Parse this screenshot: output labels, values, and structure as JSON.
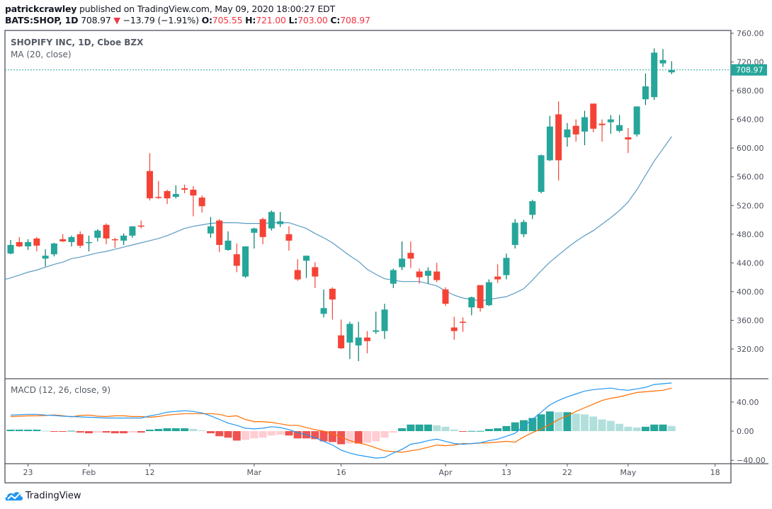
{
  "header": {
    "author": "patrickcrawley",
    "published_text": "published on TradingView.com, May 09, 2020 18:00:27 EDT",
    "symbol": "BATS:SHOP, 1D",
    "last": "708.97",
    "change": "−13.79 (−1.91%)",
    "o_label": "O:",
    "o": "705.55",
    "h_label": "H:",
    "h": "721.00",
    "l_label": "L:",
    "l": "703.00",
    "c_label": "C:",
    "c": "708.97"
  },
  "legend": {
    "title": "SHOPIFY INC, 1D, Cboe BZX",
    "ma": "MA (20, close)",
    "macd": "MACD (12, 26, close, 9)"
  },
  "logo_text": "TradingView",
  "colors": {
    "up": "#26a69a",
    "down": "#f44336",
    "ma": "#5b9bc3",
    "macd": "#2196f3",
    "signal": "#ff6d00",
    "hist_up_strong": "#26a69a",
    "hist_up_weak": "#b2dfdb",
    "hist_down_strong": "#ef5350",
    "hist_down_weak": "#ffcdd2"
  },
  "chart_data": [
    {
      "type": "candlestick",
      "title": "SHOPIFY INC, 1D, Cboe BZX",
      "ylim": [
        280,
        770
      ],
      "y_ticks": [
        "760.00",
        "720.00",
        "680.00",
        "640.00",
        "600.00",
        "560.00",
        "520.00",
        "480.00",
        "440.00",
        "400.00",
        "360.00",
        "320.00"
      ],
      "last_price_label": "708.97",
      "x_tick_labels": [
        {
          "label": "23",
          "date": "Jan 23"
        },
        {
          "label": "Feb",
          "date": "Feb 3"
        },
        {
          "label": "12",
          "date": "Feb 12"
        },
        {
          "label": "Mar",
          "date": "Mar 2"
        },
        {
          "label": "16",
          "date": "Mar 16"
        },
        {
          "label": "Apr",
          "date": "Apr 1"
        },
        {
          "label": "13",
          "date": "Apr 13"
        },
        {
          "label": "22",
          "date": "Apr 22"
        },
        {
          "label": "May",
          "date": "May 1"
        },
        {
          "label": "18",
          "date": "May 18"
        }
      ],
      "dates": [
        "Jan 21",
        "Jan 22",
        "Jan 23",
        "Jan 24",
        "Jan 27",
        "Jan 28",
        "Jan 29",
        "Jan 30",
        "Jan 31",
        "Feb 3",
        "Feb 4",
        "Feb 5",
        "Feb 6",
        "Feb 7",
        "Feb 10",
        "Feb 11",
        "Feb 12",
        "Feb 13",
        "Feb 14",
        "Feb 18",
        "Feb 19",
        "Feb 20",
        "Feb 21",
        "Feb 24",
        "Feb 25",
        "Feb 26",
        "Feb 27",
        "Feb 28",
        "Mar 2",
        "Mar 3",
        "Mar 4",
        "Mar 5",
        "Mar 6",
        "Mar 9",
        "Mar 10",
        "Mar 11",
        "Mar 12",
        "Mar 13",
        "Mar 16",
        "Mar 17",
        "Mar 18",
        "Mar 19",
        "Mar 20",
        "Mar 23",
        "Mar 24",
        "Mar 25",
        "Mar 26",
        "Mar 27",
        "Mar 30",
        "Mar 31",
        "Apr 1",
        "Apr 2",
        "Apr 3",
        "Apr 6",
        "Apr 7",
        "Apr 8",
        "Apr 9",
        "Apr 13",
        "Apr 14",
        "Apr 15",
        "Apr 16",
        "Apr 17",
        "Apr 20",
        "Apr 21",
        "Apr 22",
        "Apr 23",
        "Apr 24",
        "Apr 27",
        "Apr 28",
        "Apr 29",
        "Apr 30",
        "May 1",
        "May 4",
        "May 5",
        "May 6",
        "May 7",
        "May 8"
      ],
      "ohlc": [
        [
          453,
          472,
          452,
          465
        ],
        [
          469,
          476,
          462,
          463
        ],
        [
          463,
          473,
          458,
          469
        ],
        [
          474,
          476,
          456,
          464
        ],
        [
          446,
          459,
          435,
          450
        ],
        [
          452,
          468,
          449,
          467
        ],
        [
          473,
          480,
          469,
          470
        ],
        [
          469,
          478,
          463,
          476
        ],
        [
          480,
          484,
          461,
          464
        ],
        [
          468,
          478,
          456,
          469
        ],
        [
          475,
          487,
          470,
          485
        ],
        [
          493,
          495,
          466,
          474
        ],
        [
          473,
          475,
          461,
          472
        ],
        [
          471,
          481,
          465,
          478
        ],
        [
          478,
          491,
          475,
          491
        ],
        [
          492,
          499,
          488,
          491
        ],
        [
          568,
          593,
          527,
          530
        ],
        [
          532,
          554,
          529,
          531
        ],
        [
          540,
          542,
          522,
          530
        ],
        [
          532,
          548,
          530,
          536
        ],
        [
          544,
          549,
          537,
          542
        ],
        [
          542,
          547,
          505,
          534
        ],
        [
          531,
          534,
          510,
          519
        ],
        [
          481,
          504,
          475,
          491
        ],
        [
          499,
          501,
          455,
          465
        ],
        [
          458,
          484,
          457,
          471
        ],
        [
          452,
          467,
          427,
          436
        ],
        [
          421,
          463,
          419,
          463
        ],
        [
          482,
          489,
          460,
          488
        ],
        [
          501,
          503,
          466,
          476
        ],
        [
          488,
          513,
          485,
          511
        ],
        [
          494,
          511,
          490,
          498
        ],
        [
          480,
          491,
          457,
          471
        ],
        [
          430,
          445,
          415,
          417
        ],
        [
          443,
          450,
          419,
          450
        ],
        [
          434,
          441,
          405,
          421
        ],
        [
          369,
          403,
          364,
          377
        ],
        [
          404,
          406,
          361,
          389
        ],
        [
          339,
          361,
          320,
          321
        ],
        [
          329,
          358,
          306,
          355
        ],
        [
          325,
          358,
          303,
          336
        ],
        [
          336,
          345,
          314,
          331
        ],
        [
          344,
          372,
          341,
          346
        ],
        [
          345,
          383,
          334,
          375
        ],
        [
          411,
          432,
          405,
          430
        ],
        [
          434,
          470,
          430,
          446
        ],
        [
          454,
          470,
          433,
          446
        ],
        [
          428,
          432,
          411,
          420
        ],
        [
          422,
          434,
          411,
          429
        ],
        [
          428,
          440,
          413,
          416
        ],
        [
          403,
          406,
          380,
          383
        ],
        [
          350,
          365,
          333,
          345
        ],
        [
          358,
          364,
          344,
          357
        ],
        [
          378,
          393,
          367,
          392
        ],
        [
          409,
          409,
          372,
          377
        ],
        [
          381,
          417,
          380,
          413
        ],
        [
          421,
          438,
          412,
          417
        ],
        [
          423,
          453,
          417,
          447
        ],
        [
          465,
          501,
          460,
          496
        ],
        [
          480,
          500,
          476,
          497
        ],
        [
          507,
          528,
          501,
          526
        ],
        [
          539,
          591,
          537,
          590
        ],
        [
          583,
          645,
          582,
          630
        ],
        [
          647,
          665,
          555,
          583
        ],
        [
          615,
          635,
          602,
          626
        ],
        [
          631,
          640,
          609,
          619
        ],
        [
          623,
          652,
          604,
          643
        ],
        [
          662,
          662,
          622,
          627
        ],
        [
          634,
          640,
          609,
          632
        ],
        [
          636,
          646,
          620,
          640
        ],
        [
          624,
          646,
          622,
          632
        ],
        [
          615,
          628,
          593,
          612
        ],
        [
          619,
          658,
          616,
          658
        ],
        [
          668,
          704,
          660,
          686
        ],
        [
          671,
          739,
          667,
          733
        ],
        [
          718,
          738,
          713,
          722.76
        ],
        [
          705.55,
          721,
          703,
          708.97
        ]
      ],
      "ma20": [
        419,
        423,
        427,
        430,
        434,
        438,
        441,
        446,
        448,
        451,
        454,
        456,
        459,
        462,
        465,
        468,
        471,
        474,
        478,
        483,
        488,
        491,
        493,
        495,
        496,
        496,
        496,
        495,
        495,
        495,
        496,
        496,
        496,
        492,
        488,
        481,
        475,
        468,
        459,
        450,
        442,
        431,
        424,
        418,
        416,
        414,
        414,
        414,
        411,
        408,
        401,
        395,
        391,
        389,
        387,
        389,
        391,
        393,
        398,
        404,
        416,
        429,
        441,
        451,
        461,
        470,
        478,
        485,
        494,
        503,
        513,
        525,
        542,
        562,
        582,
        599,
        616
      ]
    },
    {
      "type": "line+bar",
      "title": "MACD (12, 26, close, 9)",
      "ylim": [
        -45,
        72
      ],
      "y_ticks": [
        "40.00",
        "0.00",
        "−40.00"
      ],
      "macd": [
        22,
        22.5,
        23,
        23,
        22,
        21.5,
        20.5,
        20,
        19.5,
        19,
        18.5,
        18,
        18,
        18,
        18,
        18,
        21,
        23,
        26,
        27,
        28,
        27,
        25,
        21,
        16,
        11,
        8,
        4,
        3,
        4,
        6,
        5,
        2,
        -2,
        -5,
        -9,
        -14,
        -19,
        -26,
        -30,
        -33,
        -35,
        -37,
        -36,
        -30,
        -25,
        -18,
        -16,
        -13,
        -11,
        -14,
        -17,
        -18,
        -17,
        -16,
        -13,
        -11,
        -7,
        -3,
        7,
        16,
        26,
        36,
        42,
        47,
        51,
        55,
        57,
        58,
        59,
        57,
        56,
        58,
        60,
        64,
        65,
        66
      ],
      "histogram": [
        2,
        2,
        2,
        2,
        0.5,
        -0.7,
        -0.7,
        0.5,
        -2,
        -3,
        -2,
        -2,
        -3,
        -3,
        -2,
        -2,
        2,
        3,
        4,
        4,
        4,
        3,
        1,
        -3,
        -7,
        -9,
        -13,
        -12,
        -10,
        -9,
        -6,
        -5,
        -6,
        -10,
        -10,
        -11,
        -14,
        -15,
        -18,
        -17,
        -17,
        -16,
        -14,
        -9,
        -2,
        4,
        9,
        9,
        9,
        8,
        6,
        2,
        -1,
        0.3,
        0.3,
        3,
        4,
        7,
        12,
        15,
        18,
        23,
        27,
        26,
        26,
        24,
        23,
        20,
        16,
        14,
        10,
        6,
        5,
        6,
        9,
        9,
        7
      ]
    }
  ]
}
